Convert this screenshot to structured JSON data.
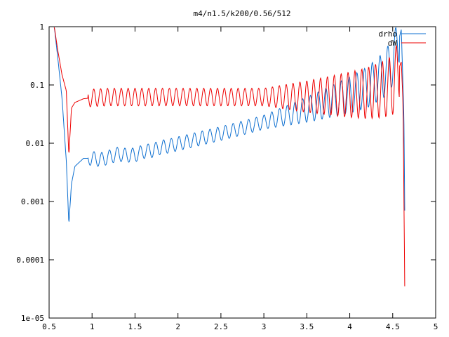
{
  "chart_data": {
    "type": "line",
    "title": "m4/n1.5/k200/0.56/512",
    "xlabel": "",
    "ylabel": "",
    "xlim": [
      0.5,
      5
    ],
    "ylim": [
      1e-05,
      1
    ],
    "yscale": "log",
    "grid": false,
    "legend_position": "top-right",
    "x_ticks": [
      0.5,
      1,
      1.5,
      2,
      2.5,
      3,
      3.5,
      4,
      4.5,
      5
    ],
    "x_tick_labels": [
      "0.5",
      "1",
      "1.5",
      "2",
      "2.5",
      "3",
      "3.5",
      "4",
      "4.5",
      "5"
    ],
    "y_ticks": [
      1,
      0.1,
      0.01,
      0.001,
      0.0001,
      1e-05
    ],
    "y_tick_labels": [
      "1",
      "0.1",
      "0.01",
      "0.001",
      "0.0001",
      "1e-05"
    ],
    "series": [
      {
        "name": "drho",
        "color": "#0d6fd0",
        "x": [
          0.56,
          0.6,
          0.65,
          0.7,
          0.73,
          0.76,
          0.8,
          0.9,
          1.0,
          1.1,
          1.2,
          1.3,
          1.4,
          1.5,
          1.6,
          1.7,
          1.8,
          1.9,
          2.0,
          2.2,
          2.4,
          2.6,
          2.8,
          3.0,
          3.2,
          3.4,
          3.6,
          3.8,
          4.0,
          4.2,
          4.4,
          4.5,
          4.55,
          4.6,
          4.63,
          4.64
        ],
        "y": [
          1.0,
          0.3,
          0.06,
          0.005,
          0.0004,
          0.002,
          0.004,
          0.0055,
          0.0055,
          0.0052,
          0.0058,
          0.0065,
          0.0062,
          0.0063,
          0.0072,
          0.0075,
          0.0085,
          0.009,
          0.0098,
          0.0115,
          0.0135,
          0.016,
          0.019,
          0.023,
          0.028,
          0.034,
          0.042,
          0.053,
          0.068,
          0.09,
          0.15,
          0.25,
          0.45,
          0.9,
          0.03,
          0.0007
        ],
        "oscillation_amplitude": 0.12,
        "oscillation_period": 0.09
      },
      {
        "name": "dW",
        "color": "#ee0000",
        "x": [
          0.56,
          0.6,
          0.65,
          0.7,
          0.73,
          0.76,
          0.8,
          0.9,
          1.0,
          1.2,
          1.5,
          2.0,
          2.5,
          3.0,
          3.5,
          4.0,
          4.2,
          4.4,
          4.5,
          4.6,
          4.62,
          4.64
        ],
        "y": [
          1.0,
          0.4,
          0.15,
          0.08,
          0.006,
          0.04,
          0.05,
          0.058,
          0.06,
          0.062,
          0.062,
          0.062,
          0.062,
          0.062,
          0.063,
          0.068,
          0.072,
          0.085,
          0.1,
          0.25,
          0.05,
          3.5e-05
        ],
        "oscillation_amplitude": 0.15,
        "oscillation_period": 0.08
      }
    ]
  }
}
